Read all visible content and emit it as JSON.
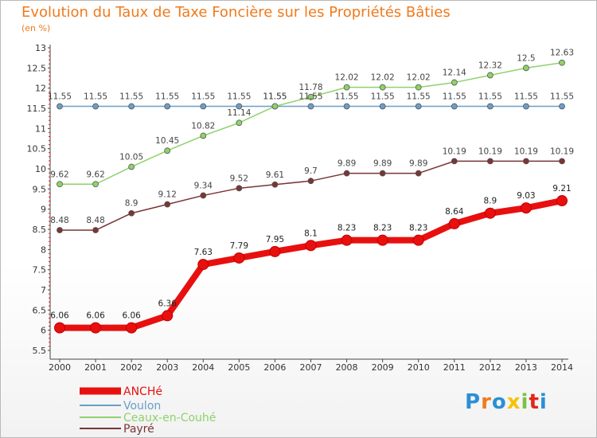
{
  "header": {
    "title": "Evolution du Taux de Taxe Foncière sur les Propriétés Bâties",
    "unit": "(en %)"
  },
  "logo": {
    "text": "Proxiti",
    "colors": [
      "#2b8fd6",
      "#f07a1c",
      "#2b8fd6",
      "#f5c200",
      "#7cc242",
      "#e2261c",
      "#2b8fd6"
    ]
  },
  "chart_data": {
    "type": "line",
    "title": "Evolution du Taux de Taxe Foncière sur les Propriétés Bâties",
    "ylabel": "(en %)",
    "xlabel": "",
    "x": [
      "2000",
      "2001",
      "2002",
      "2003",
      "2004",
      "2005",
      "2006",
      "2007",
      "2008",
      "2009",
      "2010",
      "2011",
      "2012",
      "2013",
      "2014"
    ],
    "ylim": [
      5.5,
      13
    ],
    "yticks": [
      "5.5",
      "6",
      "6.5",
      "7",
      "7.5",
      "8",
      "8.5",
      "9",
      "9.5",
      "10",
      "10.5",
      "11",
      "11.5",
      "12",
      "12.5",
      "13"
    ],
    "grid": false,
    "legend_position": "bottom-left",
    "series": [
      {
        "name": "ANCHé",
        "color": "#e8100f",
        "width": 8,
        "values": [
          6.06,
          6.06,
          6.06,
          6.36,
          7.63,
          7.79,
          7.95,
          8.1,
          8.23,
          8.23,
          8.23,
          8.64,
          8.9,
          9.03,
          9.21
        ],
        "labels": [
          "6.06",
          "6.06",
          "6.06",
          "6.36",
          "7.63",
          "7.79",
          "7.95",
          "8.1",
          "8.23",
          "8.23",
          "8.23",
          "8.64",
          "8.9",
          "9.03",
          "9.21"
        ]
      },
      {
        "name": "Voulon",
        "color": "#6c9ec7",
        "width": 1.5,
        "values": [
          11.55,
          11.55,
          11.55,
          11.55,
          11.55,
          11.55,
          11.55,
          11.55,
          11.55,
          11.55,
          11.55,
          11.55,
          11.55,
          11.55,
          11.55
        ],
        "labels": [
          "11.55",
          "11.55",
          "11.55",
          "11.55",
          "11.55",
          "11.55",
          "11.55",
          "11.55",
          "11.55",
          "11.55",
          "11.55",
          "11.55",
          "11.55",
          "11.55",
          "11.55"
        ]
      },
      {
        "name": "Ceaux-en-Couhé",
        "color": "#8ed26b",
        "width": 1.5,
        "values": [
          9.62,
          9.62,
          10.05,
          10.45,
          10.82,
          11.14,
          11.55,
          11.78,
          12.02,
          12.02,
          12.02,
          12.14,
          12.32,
          12.5,
          12.63
        ],
        "labels": [
          "9.62",
          "9.62",
          "10.05",
          "10.45",
          "10.82",
          "11.14",
          "11.55",
          "11.78",
          "12.02",
          "12.02",
          "12.02",
          "12.14",
          "12.32",
          "12.5",
          "12.63"
        ]
      },
      {
        "name": "Payré",
        "color": "#7a3535",
        "width": 1.5,
        "values": [
          8.48,
          8.48,
          8.9,
          9.12,
          9.34,
          9.52,
          9.61,
          9.7,
          9.89,
          9.89,
          9.89,
          10.19,
          10.19,
          10.19,
          10.19
        ],
        "labels": [
          "8.48",
          "8.48",
          "8.9",
          "9.12",
          "9.34",
          "9.52",
          "9.61",
          "9.7",
          "9.89",
          "9.89",
          "9.89",
          "10.19",
          "10.19",
          "10.19",
          "10.19"
        ]
      }
    ]
  }
}
